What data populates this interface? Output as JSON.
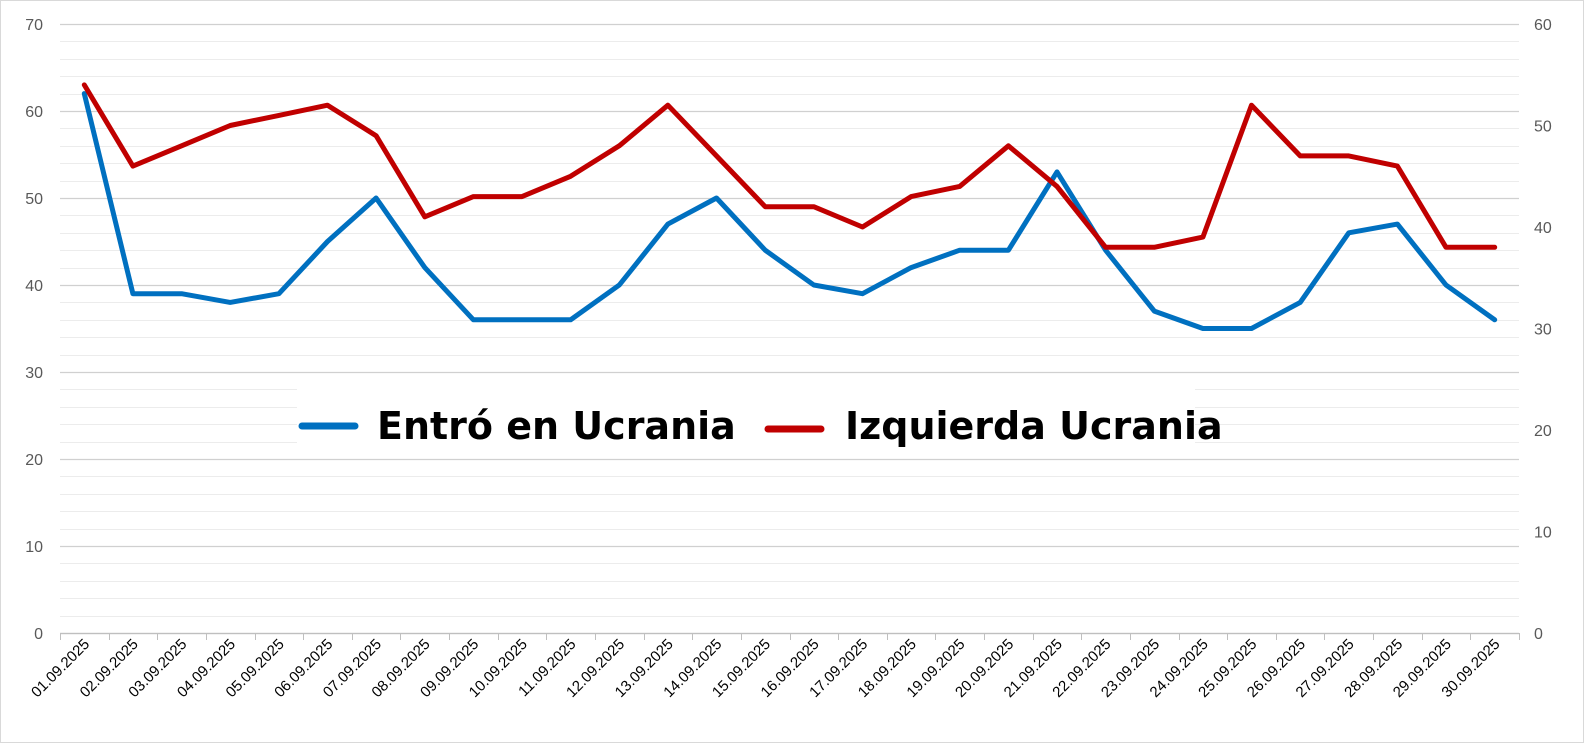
{
  "chart_data": {
    "type": "line",
    "title": "",
    "xlabel": "",
    "ylabel": "",
    "y_left": {
      "range": [
        0,
        70
      ],
      "ticks": [
        0,
        10,
        20,
        30,
        40,
        50,
        60,
        70
      ]
    },
    "y_right": {
      "range": [
        0,
        60
      ],
      "ticks": [
        0,
        10,
        20,
        30,
        40,
        50,
        60
      ]
    },
    "grid": true,
    "legend_placement": "center",
    "x": [
      "01.09.2025",
      "02.09.2025",
      "03.09.2025",
      "04.09.2025",
      "05.09.2025",
      "06.09.2025",
      "07.09.2025",
      "08.09.2025",
      "09.09.2025",
      "10.09.2025",
      "11.09.2025",
      "12.09.2025",
      "13.09.2025",
      "14.09.2025",
      "15.09.2025",
      "16.09.2025",
      "17.09.2025",
      "18.09.2025",
      "19.09.2025",
      "20.09.2025",
      "21.09.2025",
      "22.09.2025",
      "23.09.2025",
      "24.09.2025",
      "25.09.2025",
      "26.09.2025",
      "27.09.2025",
      "28.09.2025",
      "29.09.2025",
      "30.09.2025"
    ],
    "series": [
      {
        "name": "Entró en Ucrania",
        "color": "#0070c0",
        "axis": "left",
        "values": [
          62,
          39,
          39,
          38,
          39,
          45,
          50,
          42,
          36,
          36,
          36,
          40,
          47,
          50,
          44,
          40,
          39,
          42,
          44,
          44,
          53,
          44,
          37,
          35,
          35,
          38,
          46,
          47,
          40,
          36
        ]
      },
      {
        "name": "Izquierda Ucrania",
        "color": "#c00000",
        "axis": "right",
        "values": [
          54,
          46,
          48,
          50,
          51,
          52,
          49,
          41,
          43,
          43,
          45,
          48,
          52,
          47,
          42,
          42,
          40,
          43,
          44,
          48,
          44,
          38,
          38,
          39,
          52,
          47,
          47,
          46,
          38,
          38
        ]
      }
    ]
  }
}
